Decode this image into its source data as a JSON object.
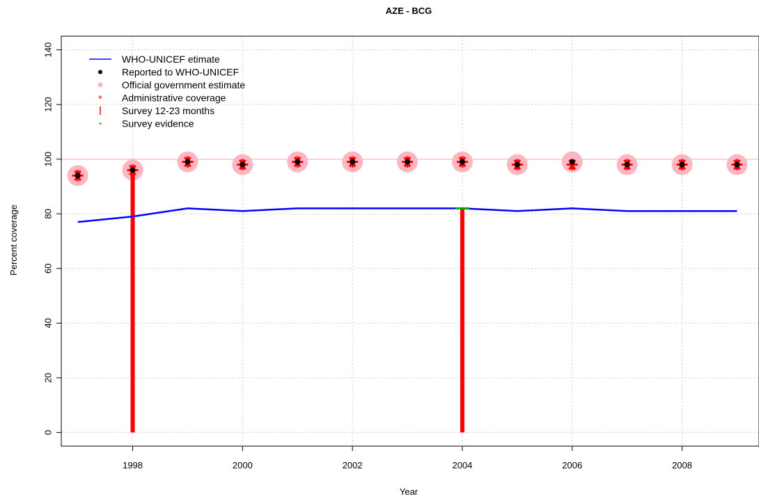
{
  "chart_data": {
    "type": "line",
    "title": "AZE  -  BCG",
    "xlabel": "Year",
    "ylabel": "Percent coverage",
    "xlim": [
      1996.7,
      2009.4
    ],
    "ylim": [
      -5,
      145
    ],
    "x_ticks": [
      1998,
      2000,
      2002,
      2004,
      2006,
      2008
    ],
    "y_ticks": [
      0,
      20,
      40,
      60,
      80,
      100,
      120,
      140
    ],
    "grid": true,
    "legend_position": "top-left",
    "reference_line": 100,
    "colors": {
      "estimate": "#0000ff",
      "reported": "#000000",
      "official": "#ffb6c1",
      "admin": "#ff0000",
      "survey": "#ff0000",
      "survey_evidence": "#00aa00",
      "grid": "#cccccc",
      "reference": "#ffc0cb"
    },
    "series": [
      {
        "name": "WHO-UNICEF etimate",
        "kind": "line",
        "x": [
          1997,
          1998,
          1999,
          2000,
          2001,
          2002,
          2003,
          2004,
          2005,
          2006,
          2007,
          2008,
          2009
        ],
        "values": [
          77,
          79,
          82,
          81,
          82,
          82,
          82,
          82,
          81,
          82,
          81,
          81,
          81
        ]
      },
      {
        "name": "Reported to WHO-UNICEF",
        "kind": "points",
        "x": [
          1997,
          1998,
          1999,
          2000,
          2001,
          2002,
          2003,
          2004,
          2005,
          2006,
          2007,
          2008,
          2009
        ],
        "values": [
          94,
          96,
          99,
          98,
          99,
          99,
          99,
          99,
          98,
          99,
          98,
          98,
          98
        ]
      },
      {
        "name": "Official government estimate",
        "kind": "points",
        "x": [
          1997,
          1998,
          1999,
          2000,
          2001,
          2002,
          2003,
          2004,
          2005,
          2006,
          2007,
          2008,
          2009
        ],
        "values": [
          94,
          96,
          99,
          98,
          99,
          99,
          99,
          99,
          98,
          99,
          98,
          98,
          98
        ]
      },
      {
        "name": "Administrative coverage",
        "kind": "points",
        "x": [
          1997,
          1998,
          1999,
          2000,
          2001,
          2002,
          2003,
          2004,
          2005,
          2006,
          2007,
          2008,
          2009
        ],
        "values": [
          94,
          96,
          99,
          98,
          99,
          99,
          99,
          99,
          98,
          98,
          98,
          98,
          98
        ]
      },
      {
        "name": "Survey 12-23 months",
        "kind": "bars",
        "x": [
          1998,
          2004
        ],
        "values": [
          96,
          82
        ]
      },
      {
        "name": "Survey evidence",
        "kind": "marks",
        "x": [
          2004
        ],
        "values": [
          82
        ]
      }
    ]
  }
}
